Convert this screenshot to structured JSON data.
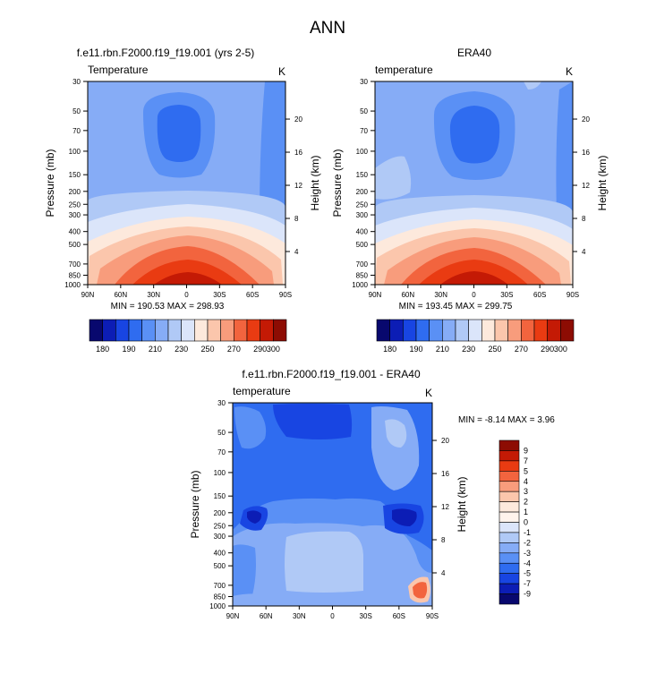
{
  "page_title": "ANN",
  "chart_data": [
    {
      "type": "contour",
      "panel": "model",
      "title": "f.e11.rbn.F2000.f19_f19.001 (yrs 2-5)",
      "left_label": "Temperature",
      "right_label": "K",
      "ylabel": "Pressure (mb)",
      "ylabel_right": "Height (km)",
      "xlim": [
        90,
        -90
      ],
      "x_ticks": [
        "90N",
        "60N",
        "30N",
        "0",
        "30S",
        "60S",
        "90S"
      ],
      "x_tick_values": [
        90,
        60,
        30,
        0,
        -30,
        -60,
        -90
      ],
      "y_ticks": [
        "30",
        "50",
        "70",
        "100",
        "150",
        "200",
        "250",
        "300",
        "400",
        "500",
        "700",
        "850",
        "1000"
      ],
      "y_tick_values": [
        30,
        50,
        70,
        100,
        150,
        200,
        250,
        300,
        400,
        500,
        700,
        850,
        1000
      ],
      "height_ticks": [
        "20",
        "16",
        "12",
        "8",
        "4"
      ],
      "height_tick_values": [
        20,
        16,
        12,
        8,
        4
      ],
      "stats": "MIN = 190.53  MAX = 298.93",
      "min": 190.53,
      "max": 298.93,
      "levels": [
        180,
        190,
        200,
        210,
        220,
        230,
        240,
        250,
        260,
        270,
        280,
        290,
        300
      ],
      "colorbar_labels": [
        "180",
        "190",
        "210",
        "230",
        "250",
        "270",
        "290",
        "300"
      ],
      "colorbar_colors": [
        "#08086e",
        "#0c1db5",
        "#1845e2",
        "#2f6cf0",
        "#5a90f5",
        "#86acf6",
        "#b0c9f6",
        "#dbe5fa",
        "#fde9dc",
        "#fbc6ac",
        "#f89c7c",
        "#f2643e",
        "#e93b12",
        "#c41a05",
        "#8d0c03"
      ]
    },
    {
      "type": "contour",
      "panel": "reanalysis",
      "title": "ERA40",
      "left_label": "temperature",
      "right_label": "K",
      "ylabel": "Pressure (mb)",
      "ylabel_right": "Height (km)",
      "xlim": [
        90,
        -90
      ],
      "x_ticks": [
        "90N",
        "60N",
        "30N",
        "0",
        "30S",
        "60S",
        "90S"
      ],
      "x_tick_values": [
        90,
        60,
        30,
        0,
        -30,
        -60,
        -90
      ],
      "y_ticks": [
        "30",
        "50",
        "70",
        "100",
        "150",
        "200",
        "250",
        "300",
        "400",
        "500",
        "700",
        "850",
        "1000"
      ],
      "y_tick_values": [
        30,
        50,
        70,
        100,
        150,
        200,
        250,
        300,
        400,
        500,
        700,
        850,
        1000
      ],
      "height_ticks": [
        "20",
        "16",
        "12",
        "8",
        "4"
      ],
      "height_tick_values": [
        20,
        16,
        12,
        8,
        4
      ],
      "stats": "MIN = 193.45  MAX = 299.75",
      "min": 193.45,
      "max": 299.75,
      "levels": [
        180,
        190,
        200,
        210,
        220,
        230,
        240,
        250,
        260,
        270,
        280,
        290,
        300
      ],
      "colorbar_labels": [
        "180",
        "190",
        "210",
        "230",
        "250",
        "270",
        "290",
        "300"
      ],
      "colorbar_colors": [
        "#08086e",
        "#0c1db5",
        "#1845e2",
        "#2f6cf0",
        "#5a90f5",
        "#86acf6",
        "#b0c9f6",
        "#dbe5fa",
        "#fde9dc",
        "#fbc6ac",
        "#f89c7c",
        "#f2643e",
        "#e93b12",
        "#c41a05",
        "#8d0c03"
      ]
    },
    {
      "type": "contour",
      "panel": "difference",
      "title": "f.e11.rbn.F2000.f19_f19.001 - ERA40",
      "left_label": "temperature",
      "right_label": "K",
      "ylabel": "Pressure (mb)",
      "ylabel_right": "Height (km)",
      "xlim": [
        90,
        -90
      ],
      "x_ticks": [
        "90N",
        "60N",
        "30N",
        "0",
        "30S",
        "60S",
        "90S"
      ],
      "x_tick_values": [
        90,
        60,
        30,
        0,
        -30,
        -60,
        -90
      ],
      "y_ticks": [
        "30",
        "50",
        "70",
        "100",
        "150",
        "200",
        "250",
        "300",
        "400",
        "500",
        "700",
        "850",
        "1000"
      ],
      "y_tick_values": [
        30,
        50,
        70,
        100,
        150,
        200,
        250,
        300,
        400,
        500,
        700,
        850,
        1000
      ],
      "height_ticks": [
        "20",
        "16",
        "12",
        "8",
        "4"
      ],
      "height_tick_values": [
        20,
        16,
        12,
        8,
        4
      ],
      "stats": "MIN = -8.14  MAX =  3.96",
      "min": -8.14,
      "max": 3.96,
      "levels": [
        -9,
        -7,
        -5,
        -4,
        -3,
        -2,
        -1,
        0,
        1,
        2,
        3,
        4,
        5,
        7,
        9
      ],
      "colorbar_labels": [
        "9",
        "7",
        "5",
        "4",
        "3",
        "2",
        "1",
        "0",
        "-1",
        "-2",
        "-3",
        "-4",
        "-5",
        "-7",
        "-9"
      ],
      "colorbar_colors": [
        "#8d0c03",
        "#c41a05",
        "#e93b12",
        "#f2643e",
        "#f89c7c",
        "#fbc6ac",
        "#fde9dc",
        "#fff3ec",
        "#dbe5fa",
        "#b0c9f6",
        "#86acf6",
        "#5a90f5",
        "#2f6cf0",
        "#1845e2",
        "#0c1db5",
        "#08086e"
      ]
    }
  ]
}
